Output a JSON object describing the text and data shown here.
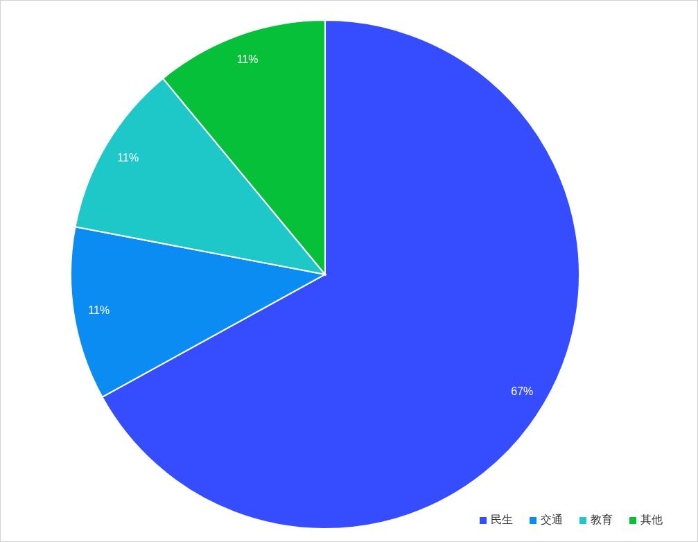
{
  "chart_data": {
    "type": "pie",
    "categories": [
      "民生",
      "交通",
      "教育",
      "其他"
    ],
    "values": [
      67,
      11,
      11,
      11
    ],
    "colors": [
      "#364cff",
      "#0b8cf2",
      "#1ec8c8",
      "#07c03a"
    ],
    "value_labels": [
      "67%",
      "11%",
      "11%",
      "11%"
    ],
    "legend": "bottom right"
  }
}
